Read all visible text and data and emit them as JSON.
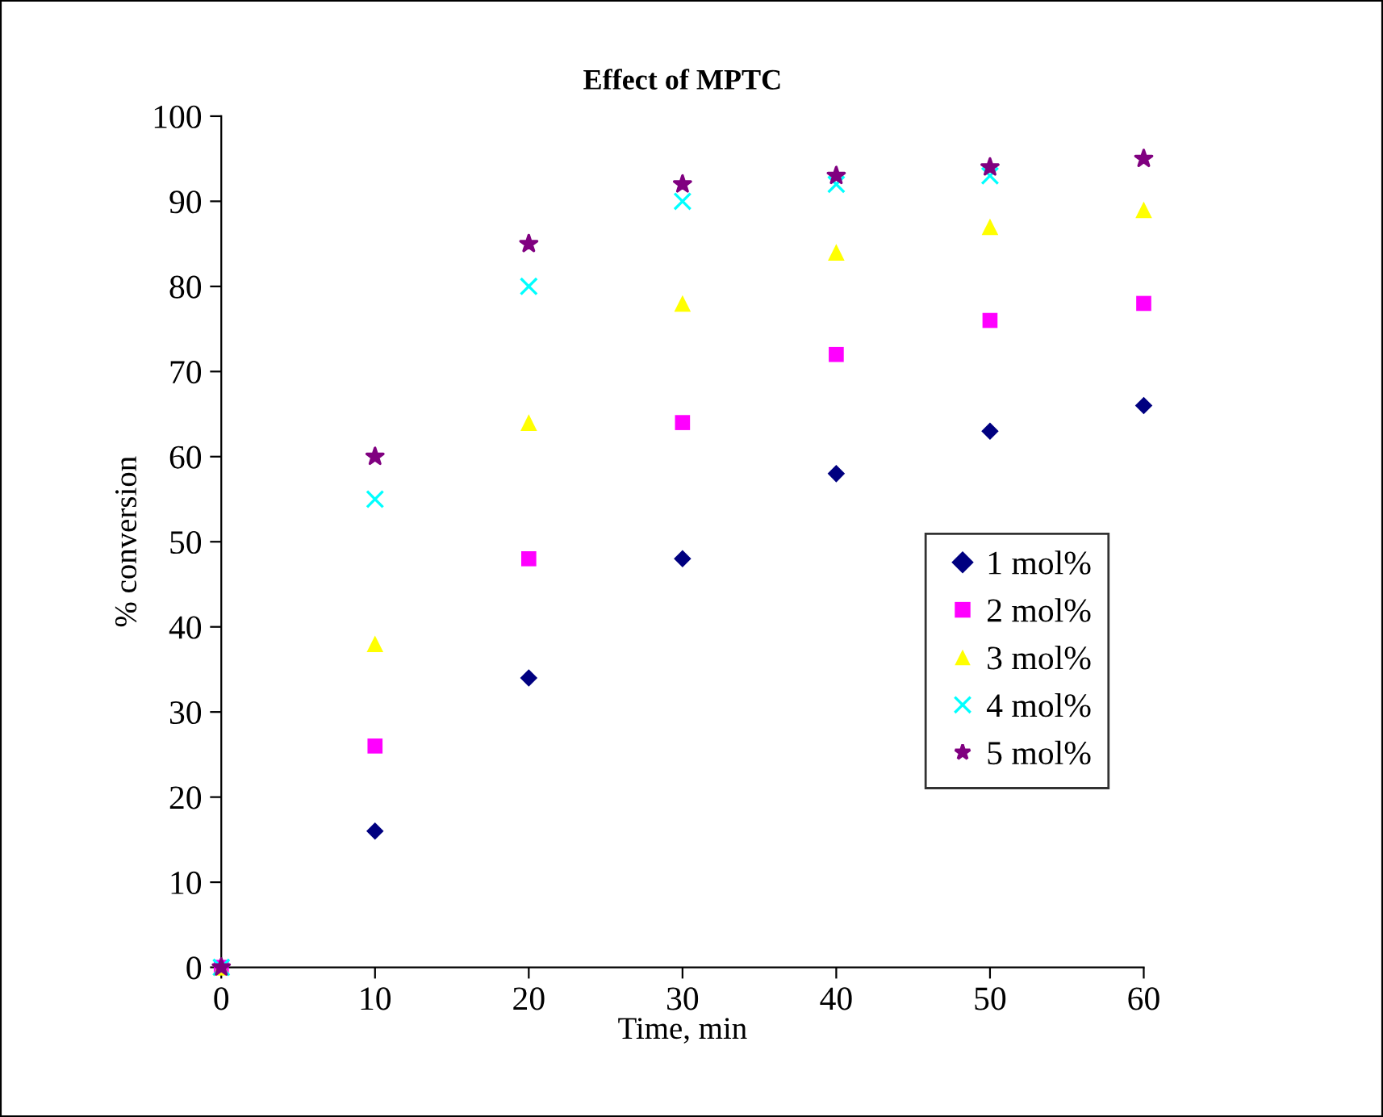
{
  "chart_data": {
    "type": "scatter",
    "title": "Effect of MPTC",
    "xlabel": "Time, min",
    "ylabel": "% conversion",
    "x": [
      0,
      10,
      20,
      30,
      40,
      50,
      60
    ],
    "xlim": [
      0,
      60
    ],
    "xticks": [
      0,
      10,
      20,
      30,
      40,
      50,
      60
    ],
    "ylim": [
      0,
      100
    ],
    "yticks": [
      0,
      10,
      20,
      30,
      40,
      50,
      60,
      70,
      80,
      90,
      100
    ],
    "grid": false,
    "legend": "right",
    "series": [
      {
        "name": "1 mol%",
        "color": "#000080",
        "marker": "diamond",
        "values": [
          null,
          16,
          34,
          48,
          58,
          63,
          66
        ]
      },
      {
        "name": "2 mol%",
        "color": "#ff00ff",
        "marker": "square",
        "values": [
          0,
          26,
          48,
          64,
          72,
          76,
          78
        ]
      },
      {
        "name": "3 mol%",
        "color": "#ffff00",
        "marker": "triangle",
        "values": [
          0,
          38,
          64,
          78,
          84,
          87,
          89
        ]
      },
      {
        "name": "4 mol%",
        "color": "#00ffff",
        "marker": "cross",
        "values": [
          0,
          55,
          80,
          90,
          92,
          93,
          null
        ]
      },
      {
        "name": "5 mol%",
        "color": "#800080",
        "marker": "star",
        "values": [
          0,
          60,
          85,
          92,
          93,
          94,
          95
        ]
      }
    ]
  }
}
